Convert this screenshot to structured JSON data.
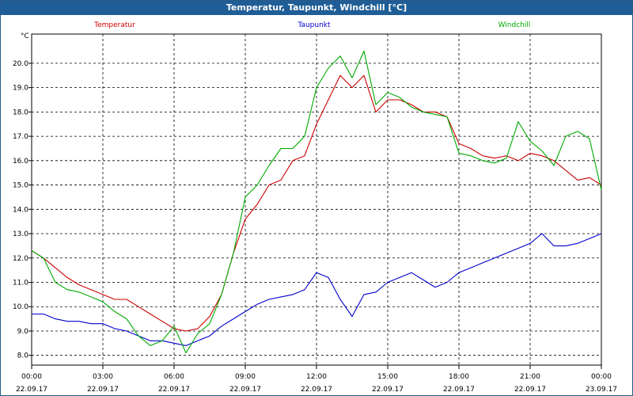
{
  "window": {
    "title": "Temperatur, Taupunkt, Windchill [°C]"
  },
  "chart_data": {
    "type": "line",
    "title": "Temperatur, Taupunkt, Windchill [°C]",
    "ylabel": "°C",
    "ylim": [
      7.6,
      21.2
    ],
    "yticks": [
      "8.0",
      "9.0",
      "10.0",
      "11.0",
      "12.0",
      "13.0",
      "14.0",
      "15.0",
      "16.0",
      "17.0",
      "18.0",
      "19.0",
      "20.0"
    ],
    "yticks_values": [
      8,
      9,
      10,
      11,
      12,
      13,
      14,
      15,
      16,
      17,
      18,
      19,
      20
    ],
    "xlim": [
      0,
      24
    ],
    "xticks_hours": [
      0,
      3,
      6,
      9,
      12,
      15,
      18,
      21,
      24
    ],
    "xticks_time": [
      "00:00",
      "03:00",
      "06:00",
      "09:00",
      "12:00",
      "15:00",
      "18:00",
      "21:00",
      "00:00"
    ],
    "xticks_date": [
      "22.09.17",
      "22.09.17",
      "22.09.17",
      "22.09.17",
      "22.09.17",
      "22.09.17",
      "22.09.17",
      "22.09.17",
      "23.09.17"
    ],
    "grid": true,
    "legend_position": "top",
    "series": [
      {
        "name": "Temperatur",
        "color": "#cc0000",
        "x": [
          0,
          0.5,
          1,
          1.5,
          2,
          2.5,
          3,
          3.5,
          4,
          4.5,
          5,
          5.5,
          6,
          6.5,
          7,
          7.5,
          8,
          8.5,
          9,
          9.5,
          10,
          10.5,
          11,
          11.5,
          12,
          12.5,
          13,
          13.5,
          14,
          14.5,
          15,
          15.5,
          16,
          16.5,
          17,
          17.5,
          18,
          18.5,
          19,
          19.5,
          20,
          20.5,
          21,
          21.5,
          22,
          22.5,
          23,
          23.5,
          24
        ],
        "values": [
          12.3,
          12.0,
          11.6,
          11.2,
          10.9,
          10.7,
          10.5,
          10.3,
          10.3,
          10.0,
          9.7,
          9.4,
          9.1,
          9.0,
          9.1,
          9.6,
          10.5,
          12.2,
          13.6,
          14.2,
          15.0,
          15.2,
          16.0,
          16.2,
          17.5,
          18.5,
          19.5,
          19.0,
          19.5,
          18.0,
          18.5,
          18.5,
          18.3,
          18.0,
          18.0,
          17.8,
          16.7,
          16.5,
          16.2,
          16.1,
          16.2,
          16.0,
          16.3,
          16.2,
          16.0,
          15.6,
          15.2,
          15.3,
          15.0
        ]
      },
      {
        "name": "Taupunkt",
        "color": "#0000cc",
        "x": [
          0,
          0.5,
          1,
          1.5,
          2,
          2.5,
          3,
          3.5,
          4,
          4.5,
          5,
          5.5,
          6,
          6.5,
          7,
          7.5,
          8,
          8.5,
          9,
          9.5,
          10,
          10.5,
          11,
          11.5,
          12,
          12.5,
          13,
          13.5,
          14,
          14.5,
          15,
          15.5,
          16,
          16.5,
          17,
          17.5,
          18,
          18.5,
          19,
          19.5,
          20,
          20.5,
          21,
          21.5,
          22,
          22.5,
          23,
          23.5,
          24
        ],
        "values": [
          9.7,
          9.7,
          9.5,
          9.4,
          9.4,
          9.3,
          9.3,
          9.1,
          9.0,
          8.8,
          8.6,
          8.6,
          8.5,
          8.4,
          8.6,
          8.8,
          9.2,
          9.5,
          9.8,
          10.1,
          10.3,
          10.4,
          10.5,
          10.7,
          11.4,
          11.2,
          10.3,
          9.6,
          10.5,
          10.6,
          11.0,
          11.2,
          11.4,
          11.1,
          10.8,
          11.0,
          11.4,
          11.6,
          11.8,
          12.0,
          12.2,
          12.4,
          12.6,
          13.0,
          12.5,
          12.5,
          12.6,
          12.8,
          13.0
        ]
      },
      {
        "name": "Windchill",
        "color": "#00aa00",
        "x": [
          0,
          0.5,
          1,
          1.5,
          2,
          2.5,
          3,
          3.5,
          4,
          4.5,
          5,
          5.5,
          6,
          6.5,
          7,
          7.5,
          8,
          8.5,
          9,
          9.5,
          10,
          10.5,
          11,
          11.5,
          12,
          12.5,
          13,
          13.5,
          14,
          14.5,
          15,
          15.5,
          16,
          16.5,
          17,
          17.5,
          18,
          18.5,
          19,
          19.5,
          20,
          20.5,
          21,
          21.5,
          22,
          22.5,
          23,
          23.5,
          24
        ],
        "values": [
          12.3,
          12.0,
          11.0,
          10.7,
          10.6,
          10.4,
          10.2,
          9.8,
          9.5,
          8.8,
          8.4,
          8.6,
          9.2,
          8.1,
          8.9,
          9.3,
          10.5,
          12.2,
          14.5,
          15.0,
          15.8,
          16.5,
          16.5,
          17.0,
          19.0,
          19.8,
          20.3,
          19.4,
          20.5,
          18.3,
          18.8,
          18.6,
          18.2,
          18.0,
          17.9,
          17.8,
          16.3,
          16.2,
          16.0,
          15.9,
          16.1,
          17.6,
          16.8,
          16.4,
          15.8,
          17.0,
          17.2,
          16.9,
          14.8
        ]
      }
    ]
  }
}
